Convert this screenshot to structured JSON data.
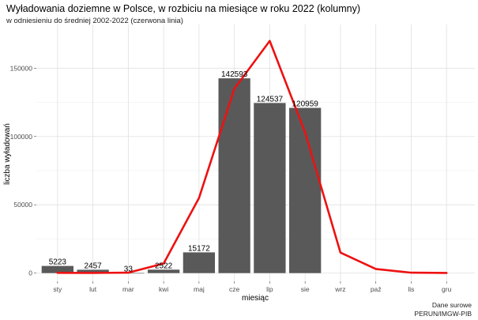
{
  "chart_data": {
    "type": "bar",
    "title": "Wyładowania doziemne w Polsce, w rozbiciu na miesiące w roku 2022 (kolumny)",
    "subtitle": "w odniesieniu do średniej 2002-2022 (czerwona linia)",
    "xlabel": "miesiąc",
    "ylabel": "liczba wyładowań",
    "categories": [
      "sty",
      "lut",
      "mar",
      "kwi",
      "maj",
      "cze",
      "lip",
      "sie",
      "wrz",
      "paź",
      "lis",
      "gru"
    ],
    "series": [
      {
        "type": "bar",
        "color": "#595959",
        "values": [
          5223,
          2457,
          33,
          2522,
          15172,
          142593,
          124537,
          120959,
          null,
          null,
          null,
          null
        ],
        "labels": [
          "5223",
          "2457",
          "33",
          "2522",
          "15172",
          "142593",
          "124537",
          "120959",
          "",
          "",
          "",
          ""
        ]
      },
      {
        "type": "line",
        "color": "#ee1111",
        "values": [
          200,
          100,
          300,
          7000,
          55000,
          135000,
          170000,
          103000,
          15000,
          3000,
          300,
          100
        ]
      }
    ],
    "yticks": [
      0,
      50000,
      100000,
      150000
    ],
    "ytick_labels": [
      "0",
      "50000",
      "100000",
      "150000"
    ],
    "ylim": [
      -6000,
      182000
    ],
    "grid": true,
    "caption": [
      "Dane surowe",
      "PERUN/IMGW-PIB"
    ]
  }
}
